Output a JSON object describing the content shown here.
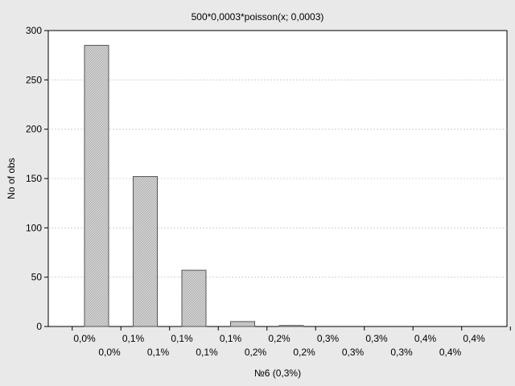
{
  "chart_data": {
    "type": "bar",
    "title": "500*0,0003*poisson(x; 0,0003)",
    "xlabel": "№6 (0,3%)",
    "ylabel": "No of obs",
    "ylim": [
      0,
      300
    ],
    "yticks": [
      0,
      50,
      100,
      150,
      200,
      250,
      300
    ],
    "grid": "horizontal dotted",
    "bar_pattern": "hatched",
    "x_tick_labels_upper": [
      "0,0%",
      "0,1%",
      "0,1%",
      "0,1%",
      "0,2%",
      "0,3%",
      "0,3%",
      "0,4%",
      "0,4%"
    ],
    "x_tick_labels_lower": [
      "0,0%",
      "0,1%",
      "0,1%",
      "0,2%",
      "0,2%",
      "0,3%",
      "0,3%",
      "0,4%"
    ],
    "values": [
      285,
      152,
      57,
      5,
      1,
      0,
      0,
      0,
      0
    ]
  },
  "colors": {
    "background": "#e9e9e9",
    "plot_area": "#ffffff",
    "bar_fill": "#cfcfcf",
    "bar_stroke": "#555555",
    "grid": "#c8c8c8"
  }
}
